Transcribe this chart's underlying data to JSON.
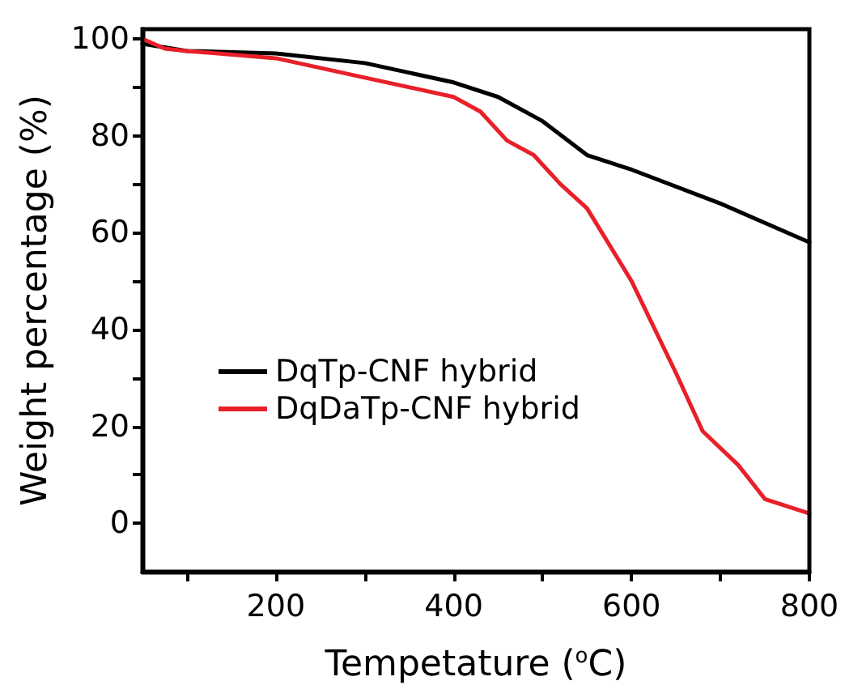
{
  "chart_data": {
    "type": "line",
    "xlabel": "Tempetature ($^{o}$C)",
    "ylabel": "Weight percentage (%)",
    "xlim": [
      50,
      800
    ],
    "ylim": [
      -10,
      102
    ],
    "xticks": [
      {
        "value": 100,
        "label": null
      },
      200,
      {
        "value": 300,
        "label": null
      },
      400,
      {
        "value": 500,
        "label": null
      },
      600,
      {
        "value": 700,
        "label": null
      },
      800
    ],
    "yticks": [
      0,
      {
        "value": 10,
        "label": null
      },
      20,
      {
        "value": 30,
        "label": null
      },
      40,
      {
        "value": 50,
        "label": null
      },
      60,
      {
        "value": 70,
        "label": null
      },
      80,
      {
        "value": 90,
        "label": null
      },
      100
    ],
    "grid": false,
    "legend": "left",
    "line_style": "solid",
    "marker": "none",
    "series": [
      {
        "name": "DqTp-CNF hybrid",
        "color": "#000000",
        "x": [
          50,
          100,
          200,
          300,
          400,
          450,
          500,
          550,
          600,
          700,
          800
        ],
        "values": [
          99,
          97.5,
          97,
          95,
          91,
          88,
          83,
          76,
          73,
          66,
          58
        ]
      },
      {
        "name": "DqDaTp-CNF hybrid",
        "color": "#e8202a",
        "x": [
          50,
          75,
          100,
          200,
          300,
          400,
          430,
          460,
          490,
          520,
          550,
          600,
          650,
          680,
          720,
          750,
          800
        ],
        "values": [
          100,
          98,
          97.5,
          96,
          92,
          88,
          85,
          79,
          76,
          70,
          65,
          50,
          31,
          19,
          12,
          5,
          2
        ]
      }
    ]
  }
}
